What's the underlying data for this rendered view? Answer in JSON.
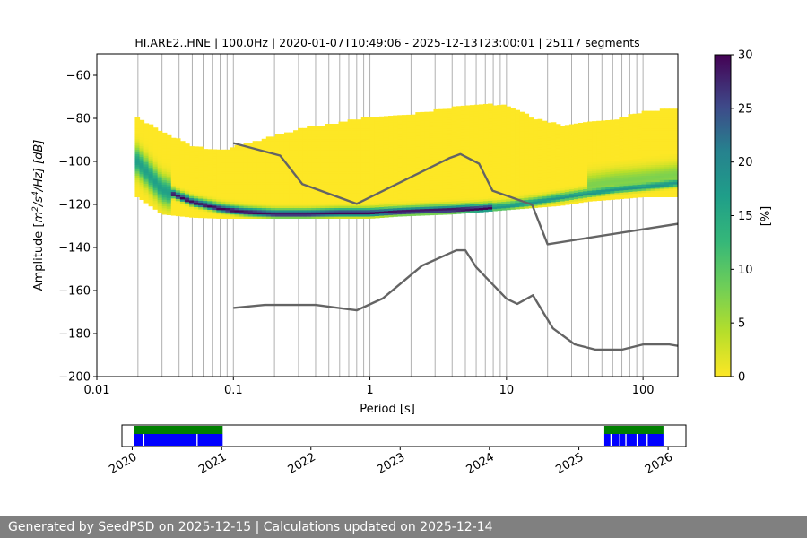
{
  "title": "HI.ARE2..HNE | 100.0Hz | 2020-01-07T10:49:06 - 2025-12-13T23:00:01 | 25117 segments",
  "footer": "Generated by SeedPSD on 2025-12-15 | Calculations updated on 2025-12-14",
  "chart_data": [
    {
      "type": "heatmap",
      "title": "HI.ARE2..HNE | 100.0Hz | 2020-01-07T10:49:06 - 2025-12-13T23:00:01 | 25117 segments",
      "xlabel": "Period [s]",
      "ylabel_parts": [
        "Amplitude [",
        "m",
        "2",
        "/s",
        "4",
        "/Hz] [dB]"
      ],
      "x_scale": "log",
      "xlim": [
        0.01,
        180
      ],
      "ylim": [
        -200,
        -50
      ],
      "x_ticks": [
        0.01,
        0.1,
        1,
        10,
        100
      ],
      "x_tick_labels": [
        "0.01",
        "0.1",
        "1",
        "10",
        "100"
      ],
      "y_ticks": [
        -200,
        -180,
        -160,
        -140,
        -120,
        -100,
        -80,
        -60
      ],
      "y_tick_labels": [
        "−200",
        "−180",
        "−160",
        "−140",
        "−120",
        "−100",
        "−80",
        "−60"
      ],
      "grid": "vertical lines at log-decade subdivisions",
      "colorbar": {
        "label": "[%]",
        "range": [
          0,
          30
        ],
        "ticks": [
          0,
          5,
          10,
          15,
          20,
          25,
          30
        ],
        "tick_labels": [
          "0",
          "5",
          "10",
          "15",
          "20",
          "25",
          "30"
        ],
        "colormap": "viridis_r"
      },
      "density": {
        "periods": [
          0.02,
          0.03,
          0.05,
          0.08,
          0.12,
          0.2,
          0.35,
          0.6,
          1,
          1.6,
          2.5,
          4,
          6.5,
          10,
          16,
          25,
          40,
          65,
          100,
          180
        ],
        "mode_db": [
          -100,
          -113,
          -119,
          -122,
          -123.5,
          -124.5,
          -124.5,
          -124,
          -124,
          -123.5,
          -123,
          -122.5,
          -122,
          -121,
          -119,
          -117,
          -115,
          -113,
          -112,
          -110
        ],
        "upper_db": [
          -80,
          -86,
          -93,
          -95,
          -92,
          -88,
          -84,
          -82,
          -79,
          -79,
          -77,
          -75,
          -73,
          -74,
          -80,
          -83,
          -82,
          -80,
          -77,
          -75
        ],
        "lower_db": [
          -116,
          -124,
          -125.5,
          -126,
          -126,
          -126,
          -126,
          -126,
          -126,
          -125,
          -124.5,
          -124,
          -123,
          -122,
          -121,
          -120,
          -118,
          -117,
          -116,
          -116
        ]
      },
      "series": [
        {
          "x": [
            0.1,
            0.22,
            0.32,
            0.8,
            3.8,
            4.6,
            6.3,
            7.9,
            15.4,
            20,
            180
          ],
          "y": [
            -91.5,
            -97.3,
            -110.5,
            -119.7,
            -98.5,
            -96.6,
            -101.1,
            -113.6,
            -120.1,
            -138.5,
            -129
          ]
        },
        {
          "x": [
            0.1,
            0.17,
            0.4,
            0.8,
            1.24,
            2.4,
            4.3,
            5,
            6,
            10,
            12,
            15.6,
            21.9,
            31.6,
            45,
            70,
            101,
            154,
            180
          ],
          "y": [
            -168.1,
            -166.7,
            -166.7,
            -169.2,
            -163.7,
            -148.5,
            -141.3,
            -141.3,
            -149.2,
            -163.8,
            -166.2,
            -162.2,
            -177.6,
            -185,
            -187.5,
            -187.5,
            -185,
            -185,
            -185.7
          ]
        }
      ]
    },
    {
      "type": "bar",
      "x_ticks": [
        "2020",
        "2021",
        "2022",
        "2023",
        "2024",
        "2025",
        "2026"
      ],
      "range": [
        "2019-11-20",
        "2026-03-15"
      ],
      "availability_colors": [
        "#008000",
        "#0000ff"
      ],
      "available_segments": [
        [
          "2020-01-07",
          "2021-01-05"
        ],
        [
          "2025-04-15",
          "2025-12-13"
        ]
      ],
      "gaps": [
        "2020-02-15",
        "2020-09-20",
        "2025-05-10",
        "2025-06-15",
        "2025-07-10",
        "2025-08-25",
        "2025-10-05"
      ]
    }
  ]
}
